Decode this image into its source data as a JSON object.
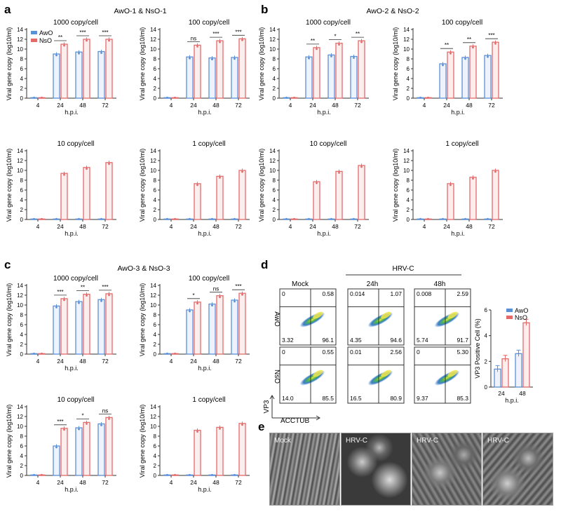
{
  "panel_letters": [
    "a",
    "b",
    "c",
    "d",
    "e"
  ],
  "groups": {
    "a": "AwO-1 & NsO-1",
    "b": "AwO-2 & NsO-2",
    "c": "AwO-3 & NsO-3"
  },
  "common": {
    "ylabel": "Viral gene copy (log10/ml)",
    "xlabel": "h.p.i.",
    "x_ticks": [
      "4",
      "24",
      "48",
      "72"
    ],
    "legend": [
      "AwO",
      "NsO"
    ]
  },
  "colors": {
    "awo": "#5b8fd6",
    "nso": "#e46a6a",
    "awo_fill": "#eef3fb",
    "nso_fill": "#fdeeee"
  },
  "chart_data": [
    {
      "type": "bar",
      "panel": "a",
      "title": "1000 copy/cell",
      "categories": [
        "4",
        "24",
        "48",
        "72"
      ],
      "xlabel": "h.p.i.",
      "ylabel": "Viral gene copy (log10/ml)",
      "ylim": [
        0,
        14
      ],
      "legend": "top-left",
      "series": [
        {
          "name": "AwO",
          "values": [
            0.1,
            9.0,
            9.4,
            9.5
          ]
        },
        {
          "name": "NsO",
          "values": [
            0.1,
            11.0,
            12.0,
            12.0
          ]
        }
      ],
      "significance": [
        "**",
        "***",
        "***"
      ]
    },
    {
      "type": "bar",
      "panel": "a",
      "title": "100 copy/cell",
      "categories": [
        "4",
        "24",
        "48",
        "72"
      ],
      "xlabel": "h.p.i.",
      "ylabel": "Viral gene copy (log10/ml)",
      "ylim": [
        0,
        14
      ],
      "series": [
        {
          "name": "AwO",
          "values": [
            0.1,
            8.4,
            8.2,
            8.3
          ]
        },
        {
          "name": "NsO",
          "values": [
            0.1,
            10.8,
            11.7,
            12.1
          ]
        }
      ],
      "significance": [
        "ns",
        "***",
        "***"
      ]
    },
    {
      "type": "bar",
      "panel": "a",
      "title": "10 copy/cell",
      "categories": [
        "4",
        "24",
        "48",
        "72"
      ],
      "xlabel": "h.p.i.",
      "ylabel": "Viral gene copy (log10/ml)",
      "ylim": [
        0,
        14
      ],
      "series": [
        {
          "name": "AwO",
          "values": [
            0.1,
            0.1,
            0.1,
            0.1
          ]
        },
        {
          "name": "NsO",
          "values": [
            0.1,
            9.4,
            10.6,
            11.6
          ]
        }
      ],
      "significance": []
    },
    {
      "type": "bar",
      "panel": "a",
      "title": "1 copy/cell",
      "categories": [
        "4",
        "24",
        "48",
        "72"
      ],
      "xlabel": "h.p.i.",
      "ylabel": "Viral gene copy (log10/ml)",
      "ylim": [
        0,
        14
      ],
      "series": [
        {
          "name": "AwO",
          "values": [
            0.1,
            0.1,
            0.1,
            0.1
          ]
        },
        {
          "name": "NsO",
          "values": [
            0.1,
            7.3,
            8.8,
            10.0
          ]
        }
      ],
      "significance": []
    },
    {
      "type": "bar",
      "panel": "b",
      "title": "1000 copy/cell",
      "categories": [
        "4",
        "24",
        "48",
        "72"
      ],
      "xlabel": "h.p.i.",
      "ylabel": "Viral gene copy (log10/ml)",
      "ylim": [
        0,
        14
      ],
      "series": [
        {
          "name": "AwO",
          "values": [
            0.1,
            8.4,
            8.8,
            8.5
          ]
        },
        {
          "name": "NsO",
          "values": [
            0.1,
            10.3,
            11.2,
            11.7
          ]
        }
      ],
      "significance": [
        "**",
        "*",
        "**"
      ]
    },
    {
      "type": "bar",
      "panel": "b",
      "title": "100 copy/cell",
      "categories": [
        "4",
        "24",
        "48",
        "72"
      ],
      "xlabel": "h.p.i.",
      "ylabel": "Viral gene copy (log10/ml)",
      "ylim": [
        0,
        14
      ],
      "series": [
        {
          "name": "AwO",
          "values": [
            0.1,
            7.0,
            8.3,
            8.7
          ]
        },
        {
          "name": "NsO",
          "values": [
            0.1,
            9.4,
            10.6,
            11.4
          ]
        }
      ],
      "significance": [
        "**",
        "**",
        "***"
      ]
    },
    {
      "type": "bar",
      "panel": "b",
      "title": "10 copy/cell",
      "categories": [
        "4",
        "24",
        "48",
        "72"
      ],
      "xlabel": "h.p.i.",
      "ylabel": "Viral gene copy (log10/ml)",
      "ylim": [
        0,
        14
      ],
      "series": [
        {
          "name": "AwO",
          "values": [
            0.1,
            0.1,
            0.1,
            0.1
          ]
        },
        {
          "name": "NsO",
          "values": [
            0.1,
            7.7,
            9.8,
            11.0
          ]
        }
      ],
      "significance": []
    },
    {
      "type": "bar",
      "panel": "b",
      "title": "1 copy/cell",
      "categories": [
        "4",
        "24",
        "48",
        "72"
      ],
      "xlabel": "h.p.i.",
      "ylabel": "Viral gene copy (log10/ml)",
      "ylim": [
        0,
        14
      ],
      "series": [
        {
          "name": "AwO",
          "values": [
            0.1,
            0.1,
            0.1,
            0.1
          ]
        },
        {
          "name": "NsO",
          "values": [
            0.1,
            7.3,
            8.6,
            10.0
          ]
        }
      ],
      "significance": []
    },
    {
      "type": "bar",
      "panel": "c",
      "title": "1000 copy/cell",
      "categories": [
        "4",
        "24",
        "48",
        "72"
      ],
      "xlabel": "h.p.i.",
      "ylabel": "Viral gene copy (log10/ml)",
      "ylim": [
        0,
        14
      ],
      "series": [
        {
          "name": "AwO",
          "values": [
            0.1,
            9.8,
            10.7,
            11.1
          ]
        },
        {
          "name": "NsO",
          "values": [
            0.1,
            11.3,
            12.2,
            12.3
          ]
        }
      ],
      "significance": [
        "***",
        "**",
        "***"
      ]
    },
    {
      "type": "bar",
      "panel": "c",
      "title": "100 copy/cell",
      "categories": [
        "4",
        "24",
        "48",
        "72"
      ],
      "xlabel": "h.p.i.",
      "ylabel": "Viral gene copy (log10/ml)",
      "ylim": [
        0,
        14
      ],
      "series": [
        {
          "name": "AwO",
          "values": [
            0.1,
            9.0,
            10.2,
            11.0
          ]
        },
        {
          "name": "NsO",
          "values": [
            0.1,
            10.6,
            11.9,
            12.4
          ]
        }
      ],
      "significance": [
        "*",
        "ns",
        "***"
      ]
    },
    {
      "type": "bar",
      "panel": "c",
      "title": "10 copy/cell",
      "categories": [
        "4",
        "24",
        "48",
        "72"
      ],
      "xlabel": "h.p.i.",
      "ylabel": "Viral gene copy (log10/ml)",
      "ylim": [
        0,
        14
      ],
      "series": [
        {
          "name": "AwO",
          "values": [
            0.1,
            6.0,
            9.7,
            10.5
          ]
        },
        {
          "name": "NsO",
          "values": [
            0.1,
            9.6,
            10.8,
            11.8
          ]
        }
      ],
      "significance": [
        "***",
        "*",
        "ns"
      ]
    },
    {
      "type": "bar",
      "panel": "c",
      "title": "1 copy/cell",
      "categories": [
        "4",
        "24",
        "48",
        "72"
      ],
      "xlabel": "h.p.i.",
      "ylabel": "Viral gene copy (log10/ml)",
      "ylim": [
        0,
        14
      ],
      "series": [
        {
          "name": "AwO",
          "values": [
            0.1,
            0.1,
            0.1,
            0.1
          ]
        },
        {
          "name": "NsO",
          "values": [
            0.1,
            9.2,
            9.8,
            10.6
          ]
        }
      ],
      "significance": []
    },
    {
      "type": "bar",
      "panel": "d",
      "title": "",
      "categories": [
        "24",
        "48"
      ],
      "xlabel": "h.p.i.",
      "ylabel": "VP3 Positive Cell (%)",
      "ylim": [
        0,
        6
      ],
      "legend": "top-right",
      "series": [
        {
          "name": "AwO",
          "values": [
            1.4,
            2.6
          ]
        },
        {
          "name": "NsO",
          "values": [
            2.2,
            5.0
          ]
        }
      ]
    }
  ],
  "flow": {
    "header_group": "HRV-C",
    "columns": [
      "Mock",
      "24h",
      "48h"
    ],
    "rows": [
      "AwO",
      "NsO"
    ],
    "y_axis": "VP3",
    "x_axis": "ACCTUB",
    "quadrants": [
      [
        [
          "0",
          "0.58",
          "3.32",
          "96.1"
        ],
        [
          "0.014",
          "1.07",
          "4.35",
          "94.6"
        ],
        [
          "0.008",
          "2.59",
          "5.74",
          "91.7"
        ]
      ],
      [
        [
          "0",
          "0.55",
          "14.0",
          "85.5"
        ],
        [
          "0.01",
          "2.56",
          "16.5",
          "80.9"
        ],
        [
          "0",
          "5.30",
          "9.37",
          "85.3"
        ]
      ]
    ]
  },
  "sem": {
    "labels": [
      "Mock",
      "HRV-C",
      "HRV-C",
      "HRV-C"
    ]
  }
}
